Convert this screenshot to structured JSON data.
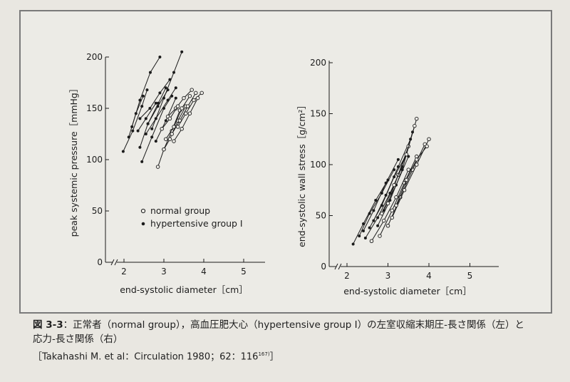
{
  "caption": {
    "figure_no": "図 3-3",
    "line1": "：正常者（normal group），高血圧肥大心（hypertensive group I）の左室収縮末期圧-長さ関係（左）と",
    "line2": "応力-長さ関係（右）",
    "reference": "［Takahashi M. et al：Circulation 1980；62：116",
    "reference_sup": "167)",
    "reference_end": "］"
  },
  "legend": {
    "normal": "normal group",
    "hypertensive": "hypertensive group Ⅰ"
  },
  "colors": {
    "line": "#1b1b1b",
    "frame": "#7a7a7a",
    "background": "#ecebe6"
  },
  "chart_data": [
    {
      "type": "line",
      "ylabel": "peak systemic pressure［mmHg］",
      "xlabel": "end-systolic diameter［cm］",
      "xticks": [
        "2",
        "3",
        "4",
        "5"
      ],
      "yticks": [
        "0",
        "50",
        "100",
        "150",
        "200"
      ],
      "xlim": [
        1.65,
        5.7
      ],
      "ylim": [
        0,
        200
      ],
      "axis_break": true,
      "series": [
        {
          "group": "hypertensive",
          "x": [
            1.98,
            2.22,
            2.45,
            2.58
          ],
          "y": [
            108,
            128,
            152,
            168
          ]
        },
        {
          "group": "hypertensive",
          "x": [
            2.12,
            2.3,
            2.48
          ],
          "y": [
            122,
            145,
            162
          ]
        },
        {
          "group": "hypertensive",
          "x": [
            2.2,
            2.4,
            2.66,
            2.9
          ],
          "y": [
            132,
            158,
            185,
            200
          ]
        },
        {
          "group": "hypertensive",
          "x": [
            2.35,
            2.55,
            2.8
          ],
          "y": [
            128,
            140,
            155
          ]
        },
        {
          "group": "hypertensive",
          "x": [
            2.4,
            2.6,
            2.86,
            3.05
          ],
          "y": [
            112,
            135,
            155,
            170
          ]
        },
        {
          "group": "hypertensive",
          "x": [
            2.45,
            2.7,
            3.0,
            3.2
          ],
          "y": [
            98,
            122,
            150,
            162
          ]
        },
        {
          "group": "hypertensive",
          "x": [
            2.55,
            2.8,
            3.1,
            3.3
          ],
          "y": [
            125,
            140,
            158,
            170
          ]
        },
        {
          "group": "hypertensive",
          "x": [
            2.6,
            2.85,
            3.1
          ],
          "y": [
            135,
            152,
            168
          ]
        },
        {
          "group": "hypertensive",
          "x": [
            2.7,
            3.0,
            3.25,
            3.45
          ],
          "y": [
            130,
            160,
            185,
            205
          ]
        },
        {
          "group": "hypertensive",
          "x": [
            2.8,
            3.05,
            3.3
          ],
          "y": [
            118,
            138,
            160
          ]
        },
        {
          "group": "hypertensive",
          "x": [
            2.4,
            2.65,
            2.9,
            3.15
          ],
          "y": [
            140,
            150,
            165,
            178
          ]
        },
        {
          "group": "normal",
          "x": [
            2.85,
            3.0,
            3.2,
            3.4
          ],
          "y": [
            93,
            110,
            128,
            148
          ]
        },
        {
          "group": "normal",
          "x": [
            3.0,
            3.15,
            3.35,
            3.55
          ],
          "y": [
            110,
            120,
            138,
            152
          ]
        },
        {
          "group": "normal",
          "x": [
            3.05,
            3.25,
            3.45,
            3.65
          ],
          "y": [
            120,
            132,
            150,
            162
          ]
        },
        {
          "group": "normal",
          "x": [
            3.2,
            3.4,
            3.6,
            3.8
          ],
          "y": [
            125,
            138,
            152,
            165
          ]
        },
        {
          "group": "normal",
          "x": [
            3.35,
            3.55,
            3.75,
            3.95
          ],
          "y": [
            132,
            145,
            158,
            165
          ]
        },
        {
          "group": "normal",
          "x": [
            3.1,
            3.3,
            3.5,
            3.7
          ],
          "y": [
            142,
            150,
            160,
            168
          ]
        },
        {
          "group": "normal",
          "x": [
            2.95,
            3.15,
            3.35
          ],
          "y": [
            130,
            140,
            152
          ]
        },
        {
          "group": "normal",
          "x": [
            3.25,
            3.45,
            3.65,
            3.85
          ],
          "y": [
            118,
            130,
            145,
            160
          ]
        }
      ]
    },
    {
      "type": "line",
      "ylabel": "end-systolic wall stress［g/cm²］",
      "xlabel": "end-systolic diameter［cm］",
      "xticks": [
        "2",
        "3",
        "4",
        "5"
      ],
      "yticks": [
        "0",
        "50",
        "100",
        "150",
        "200"
      ],
      "xlim": [
        1.6,
        5.7
      ],
      "ylim": [
        0,
        200
      ],
      "axis_break": true,
      "series": [
        {
          "group": "hypertensive",
          "x": [
            2.15,
            2.4,
            2.7,
            3.0
          ],
          "y": [
            22,
            42,
            65,
            85
          ]
        },
        {
          "group": "hypertensive",
          "x": [
            2.3,
            2.55,
            2.85,
            3.15
          ],
          "y": [
            30,
            52,
            72,
            95
          ]
        },
        {
          "group": "hypertensive",
          "x": [
            2.4,
            2.65,
            2.95,
            3.25
          ],
          "y": [
            35,
            55,
            82,
            105
          ]
        },
        {
          "group": "hypertensive",
          "x": [
            2.45,
            2.75,
            3.05,
            3.35
          ],
          "y": [
            28,
            48,
            72,
            98
          ]
        },
        {
          "group": "hypertensive",
          "x": [
            2.55,
            2.85,
            3.15,
            3.45
          ],
          "y": [
            38,
            60,
            88,
            110
          ]
        },
        {
          "group": "hypertensive",
          "x": [
            2.65,
            2.95,
            3.25,
            3.55
          ],
          "y": [
            45,
            70,
            98,
            125
          ]
        },
        {
          "group": "hypertensive",
          "x": [
            2.75,
            3.05,
            3.35,
            3.6
          ],
          "y": [
            40,
            65,
            95,
            132
          ]
        },
        {
          "group": "hypertensive",
          "x": [
            2.9,
            3.2,
            3.5
          ],
          "y": [
            55,
            80,
            108
          ]
        },
        {
          "group": "normal",
          "x": [
            2.6,
            2.9,
            3.2,
            3.5
          ],
          "y": [
            25,
            45,
            68,
            95
          ]
        },
        {
          "group": "normal",
          "x": [
            2.8,
            3.1,
            3.4,
            3.7
          ],
          "y": [
            30,
            55,
            82,
            108
          ]
        },
        {
          "group": "normal",
          "x": [
            3.0,
            3.3,
            3.6,
            3.9
          ],
          "y": [
            40,
            68,
            95,
            120
          ]
        },
        {
          "group": "normal",
          "x": [
            3.1,
            3.4,
            3.7,
            4.0
          ],
          "y": [
            48,
            75,
            100,
            125
          ]
        },
        {
          "group": "normal",
          "x": [
            3.0,
            3.25,
            3.5,
            3.7
          ],
          "y": [
            62,
            90,
            118,
            145
          ]
        },
        {
          "group": "normal",
          "x": [
            2.85,
            3.15,
            3.45,
            3.65
          ],
          "y": [
            52,
            80,
            110,
            138
          ]
        },
        {
          "group": "normal",
          "x": [
            3.2,
            3.45,
            3.7,
            3.95
          ],
          "y": [
            60,
            85,
            105,
            118
          ]
        }
      ]
    }
  ]
}
